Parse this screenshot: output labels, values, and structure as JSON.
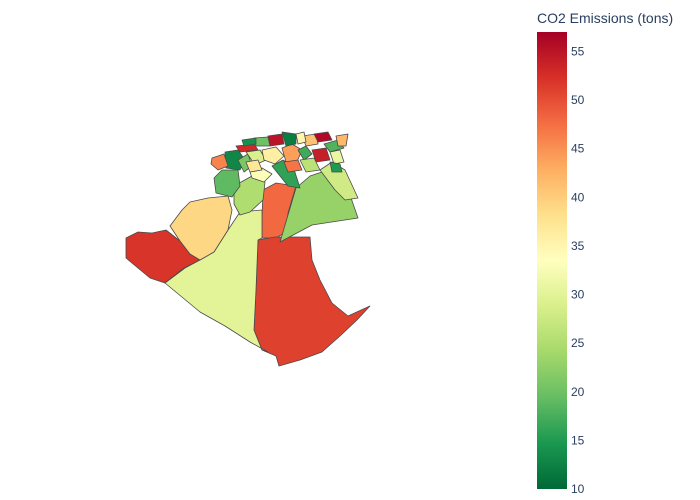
{
  "colorbar": {
    "title": "CO2 Emissions (tons)",
    "min": 10,
    "max": 57,
    "ticks": [
      10,
      15,
      20,
      25,
      30,
      35,
      40,
      45,
      50,
      55
    ],
    "colorscale": [
      "#006837",
      "#1a9850",
      "#66bd63",
      "#a6d96a",
      "#d9ef8b",
      "#ffffbf",
      "#fee08b",
      "#fdae61",
      "#f46d43",
      "#d73027",
      "#a50026"
    ]
  },
  "chart_data": {
    "type": "choropleth",
    "title": "",
    "regions": [
      {
        "value": 52
      },
      {
        "value": 48
      },
      {
        "value": 51
      },
      {
        "value": 30
      },
      {
        "value": 23
      },
      {
        "value": 28
      },
      {
        "value": 39
      },
      {
        "value": 25
      },
      {
        "value": 19
      },
      {
        "value": 16
      },
      {
        "value": 33
      },
      {
        "value": 13
      },
      {
        "value": 46
      },
      {
        "value": 21
      },
      {
        "value": 29
      },
      {
        "value": 36
      },
      {
        "value": 53
      },
      {
        "value": 44
      },
      {
        "value": 17
      },
      {
        "value": 41
      },
      {
        "value": 20
      },
      {
        "value": 55
      },
      {
        "value": 12
      },
      {
        "value": 35
      },
      {
        "value": 56
      },
      {
        "value": 18
      },
      {
        "value": 42
      },
      {
        "value": 54
      },
      {
        "value": 31
      },
      {
        "value": 15
      },
      {
        "value": 26
      },
      {
        "value": 47
      },
      {
        "value": 14
      },
      {
        "value": 37
      }
    ]
  }
}
